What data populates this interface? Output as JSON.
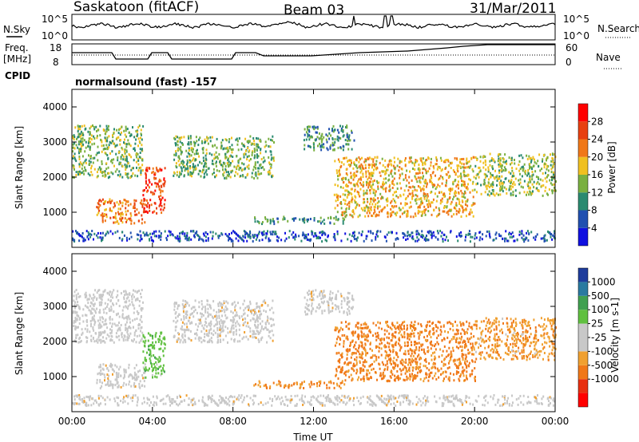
{
  "header": {
    "station": "Saskatoon (fitACF)",
    "beam": "Beam 03",
    "date": "31/Mar/2011"
  },
  "top_panels": {
    "nsky_label": "N.Sky",
    "nsearch_label": "N.Search",
    "noise_ticks_left": [
      "10^5",
      "10^0"
    ],
    "noise_ticks_right": [
      "10^5",
      "10^0"
    ],
    "freq_label_1": "Freq.",
    "freq_label_2": "[MHz]",
    "freq_ticks": [
      "18",
      "8"
    ],
    "nave_label": "Nave",
    "nave_ticks": [
      "60",
      "0"
    ],
    "cpid_label": "CPID",
    "cpid_text": "normalsound (fast) -157"
  },
  "x_axis": {
    "label": "Time UT",
    "ticks": [
      "00:00",
      "04:00",
      "08:00",
      "12:00",
      "16:00",
      "20:00",
      "00:00"
    ]
  },
  "colors": {
    "power_scale": [
      "#1010e0",
      "#2050b0",
      "#2a8a70",
      "#7ab040",
      "#f0c020",
      "#f07818",
      "#e84010",
      "#ff0000"
    ],
    "velocity_scale": [
      "#ff0000",
      "#e83010",
      "#f07818",
      "#f0a030",
      "#c8c8c8",
      "#c8c8c8",
      "#60c040",
      "#40a050",
      "#2a7aa0",
      "#1e3c9c"
    ]
  },
  "chart_data": [
    {
      "type": "heatmap",
      "title": "",
      "xlabel": "",
      "ylabel": "Slant Range [km]",
      "y_ticks": [
        "1000",
        "2000",
        "3000",
        "4000"
      ],
      "ylim": [
        0,
        4500
      ],
      "xlim_hours": [
        0,
        24
      ],
      "colorbar_label": "Power [dB]",
      "colorbar_ticks": [
        "4",
        "8",
        "12",
        "16",
        "20",
        "24",
        "28"
      ],
      "color_range": [
        0,
        32
      ],
      "regions": [
        {
          "t0": 0.0,
          "t1": 3.5,
          "r0": 2000,
          "r1": 3500,
          "value": 14
        },
        {
          "t0": 1.2,
          "t1": 3.6,
          "r0": 700,
          "r1": 1400,
          "value": 22
        },
        {
          "t0": 3.5,
          "t1": 4.6,
          "r0": 1000,
          "r1": 2300,
          "value": 27
        },
        {
          "t0": 5.0,
          "t1": 10.0,
          "r0": 2000,
          "r1": 3200,
          "value": 13
        },
        {
          "t0": 9.0,
          "t1": 13.5,
          "r0": 700,
          "r1": 900,
          "value": 10
        },
        {
          "t0": 11.5,
          "t1": 14.0,
          "r0": 2800,
          "r1": 3500,
          "value": 11
        },
        {
          "t0": 13.0,
          "t1": 20.0,
          "r0": 900,
          "r1": 2600,
          "value": 19
        },
        {
          "t0": 20.0,
          "t1": 24.0,
          "r0": 1500,
          "r1": 2700,
          "value": 15
        },
        {
          "t0": 0.0,
          "t1": 24.0,
          "r0": 200,
          "r1": 500,
          "value": 6
        }
      ]
    },
    {
      "type": "heatmap",
      "title": "",
      "xlabel": "Time UT",
      "ylabel": "Slant Range [km]",
      "y_ticks": [
        "1000",
        "2000",
        "3000",
        "4000"
      ],
      "ylim": [
        0,
        4500
      ],
      "xlim_hours": [
        0,
        24
      ],
      "colorbar_label": "Velocity [m s-1]",
      "colorbar_ticks": [
        "1000",
        "500",
        "100",
        "25",
        "-25",
        "-100",
        "-500",
        "-1000"
      ],
      "regions": [
        {
          "t0": 0.0,
          "t1": 3.5,
          "r0": 2000,
          "r1": 3500,
          "value": 30
        },
        {
          "t0": 1.2,
          "t1": 3.6,
          "r0": 700,
          "r1": 1400,
          "value": 0
        },
        {
          "t0": 3.5,
          "t1": 4.6,
          "r0": 1000,
          "r1": 2300,
          "value": 300
        },
        {
          "t0": 5.0,
          "t1": 10.0,
          "r0": 2000,
          "r1": 3200,
          "value": 0
        },
        {
          "t0": 9.0,
          "t1": 13.5,
          "r0": 700,
          "r1": 900,
          "value": -100
        },
        {
          "t0": 11.5,
          "t1": 14.0,
          "r0": 2800,
          "r1": 3500,
          "value": 0
        },
        {
          "t0": 13.0,
          "t1": 20.0,
          "r0": 900,
          "r1": 2600,
          "value": -150
        },
        {
          "t0": 20.0,
          "t1": 24.0,
          "r0": 1500,
          "r1": 2700,
          "value": -80
        },
        {
          "t0": 0.0,
          "t1": 24.0,
          "r0": 200,
          "r1": 500,
          "value": 0
        }
      ]
    }
  ]
}
